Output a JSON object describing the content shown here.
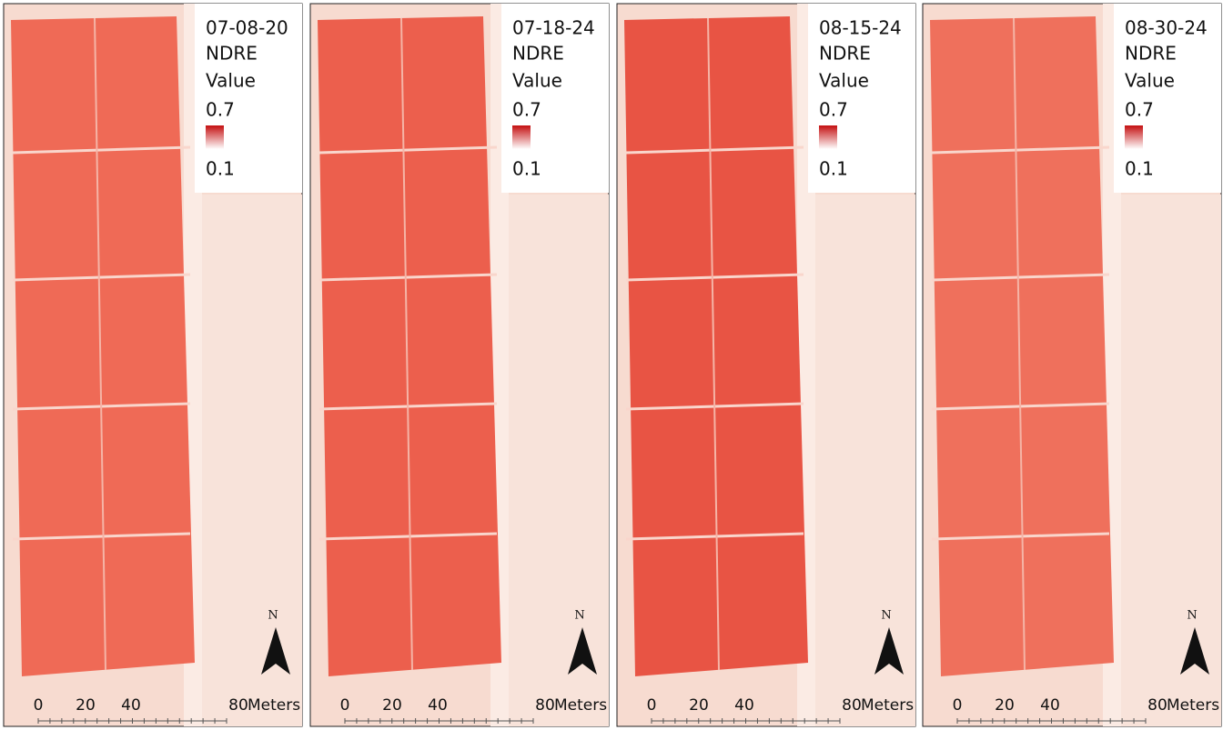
{
  "panels": [
    {
      "date": "07-08-20",
      "index": "NDRE",
      "legend_title": "Value",
      "legend_max": "0.7",
      "legend_min": "0.1",
      "north": "N",
      "scale": {
        "ticks": [
          "0",
          "20",
          "40",
          "80"
        ],
        "unit": "Meters"
      }
    },
    {
      "date": "07-18-24",
      "index": "NDRE",
      "legend_title": "Value",
      "legend_max": "0.7",
      "legend_min": "0.1",
      "north": "N",
      "scale": {
        "ticks": [
          "0",
          "20",
          "40",
          "80"
        ],
        "unit": "Meters"
      }
    },
    {
      "date": "08-15-24",
      "index": "NDRE",
      "legend_title": "Value",
      "legend_max": "0.7",
      "legend_min": "0.1",
      "north": "N",
      "scale": {
        "ticks": [
          "0",
          "20",
          "40",
          "80"
        ],
        "unit": "Meters"
      }
    },
    {
      "date": "08-30-24",
      "index": "NDRE",
      "legend_title": "Value",
      "legend_max": "0.7",
      "legend_min": "0.1",
      "north": "N",
      "scale": {
        "ticks": [
          "0",
          "20",
          "40",
          "80"
        ],
        "unit": "Meters"
      }
    }
  ]
}
